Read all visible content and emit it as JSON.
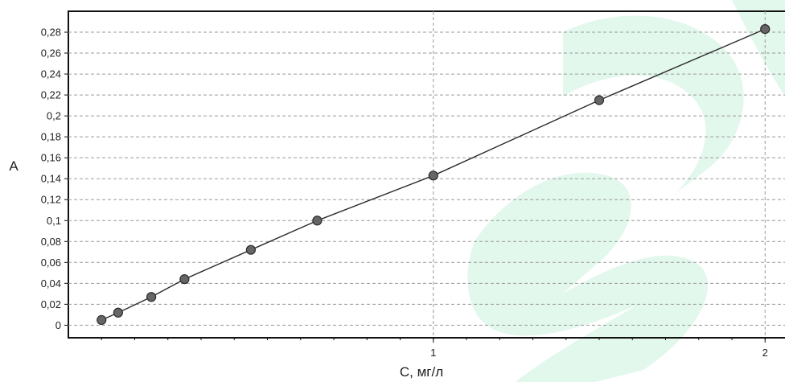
{
  "chart_data": {
    "type": "scatter",
    "title": "",
    "xlabel": "C, мг/л",
    "ylabel": "A",
    "xlim": [
      -0.1,
      2.06
    ],
    "ylim": [
      -0.012,
      0.3
    ],
    "x_ticks": [
      {
        "value": 1,
        "label": "1"
      },
      {
        "value": 2,
        "label": "2"
      }
    ],
    "y_ticks": [
      {
        "value": 0,
        "label": "0"
      },
      {
        "value": 0.02,
        "label": "0,02"
      },
      {
        "value": 0.04,
        "label": "0,04"
      },
      {
        "value": 0.06,
        "label": "0,06"
      },
      {
        "value": 0.08,
        "label": "0,08"
      },
      {
        "value": 0.1,
        "label": "0,1"
      },
      {
        "value": 0.12,
        "label": "0,12"
      },
      {
        "value": 0.14,
        "label": "0,14"
      },
      {
        "value": 0.16,
        "label": "0,16"
      },
      {
        "value": 0.18,
        "label": "0,18"
      },
      {
        "value": 0.2,
        "label": "0,2"
      },
      {
        "value": 0.22,
        "label": "0,22"
      },
      {
        "value": 0.24,
        "label": "0,24"
      },
      {
        "value": 0.26,
        "label": "0,26"
      },
      {
        "value": 0.28,
        "label": "0,28"
      }
    ],
    "grid": true,
    "legend": "none",
    "series": [
      {
        "x": [
          0.0,
          0.05,
          0.15,
          0.25,
          0.45,
          0.65,
          1.0,
          1.5,
          2.0
        ],
        "y": [
          0.005,
          0.012,
          0.027,
          0.044,
          0.072,
          0.1,
          0.143,
          0.215,
          0.283
        ],
        "line": true
      }
    ],
    "colors": {
      "marker_fill": "#666666",
      "marker_stroke": "#2b2b2b",
      "line": "#2b2b2b",
      "grid": "#9a9a9a",
      "frame": "#111111",
      "watermark": "#22c874"
    }
  }
}
